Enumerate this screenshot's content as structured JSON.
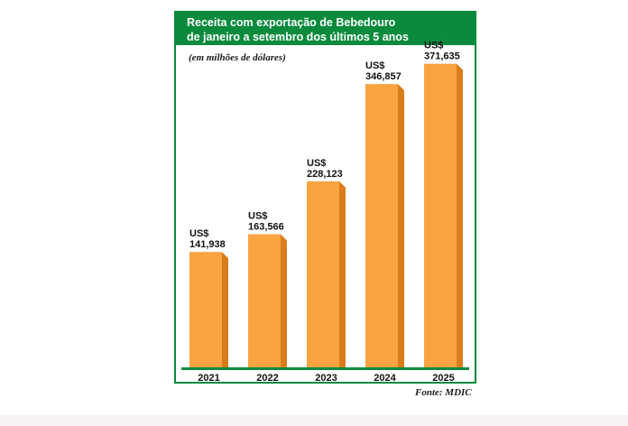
{
  "header": {
    "title_line1": "Receita com exportação de Bebedouro",
    "title_line2": "de janeiro a setembro dos últimos 5 anos"
  },
  "unit_note": "(em milhões de dólares)",
  "source": "Fonte: MDIC",
  "colors": {
    "frame": "#0a8a3c",
    "bar_front": "#f9a341",
    "bar_side": "#d97d1a",
    "baseline": "#0a8a3c"
  },
  "chart_data": {
    "type": "bar",
    "title": "Receita com exportação de Bebedouro de janeiro a setembro dos últimos 5 anos",
    "ylabel": "(em milhões de dólares)",
    "currency_prefix": "US$",
    "categories": [
      "2021",
      "2022",
      "2023",
      "2024",
      "2025"
    ],
    "values": [
      141.938,
      163.566,
      228.123,
      346.857,
      371.635
    ],
    "value_labels": [
      "141,938",
      "163,566",
      "228,123",
      "346,857",
      "371,635"
    ],
    "ylim": [
      0,
      390
    ],
    "grid": false,
    "legend": "none"
  }
}
